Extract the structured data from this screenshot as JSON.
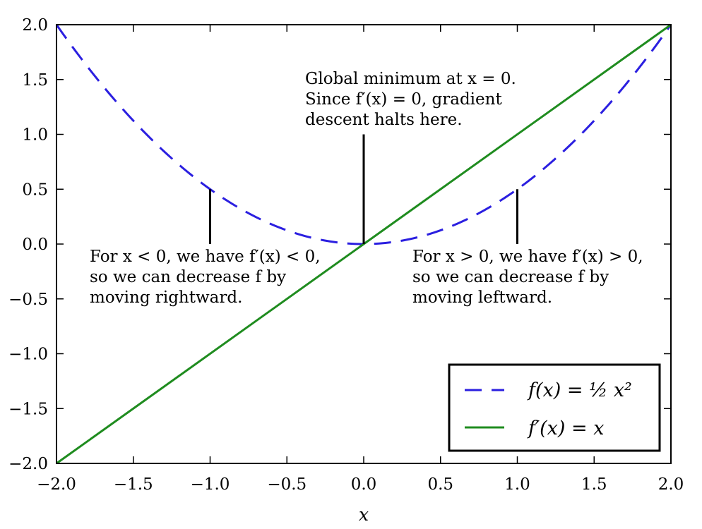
{
  "chart_data": {
    "type": "line",
    "xlabel": "x",
    "ylabel": "",
    "xlim": [
      -2.0,
      2.0
    ],
    "ylim": [
      -2.0,
      2.0
    ],
    "xticks": [
      -2.0,
      -1.5,
      -1.0,
      -0.5,
      0.0,
      0.5,
      1.0,
      1.5,
      2.0
    ],
    "yticks": [
      -2.0,
      -1.5,
      -1.0,
      -0.5,
      0.0,
      0.5,
      1.0,
      1.5,
      2.0
    ],
    "xtick_labels": [
      "−2.0",
      "−1.5",
      "−1.0",
      "−0.5",
      "0.0",
      "0.5",
      "1.0",
      "1.5",
      "2.0"
    ],
    "ytick_labels": [
      "−2.0",
      "−1.5",
      "−1.0",
      "−0.5",
      "0.0",
      "0.5",
      "1.0",
      "1.5",
      "2.0"
    ],
    "grid": false,
    "legend_position": "bottom-right",
    "series": [
      {
        "name": "f(x) = ½ x²",
        "style": "dashed",
        "color": "#2b1fe0",
        "x": [
          -2.0,
          -1.75,
          -1.5,
          -1.25,
          -1.0,
          -0.75,
          -0.5,
          -0.25,
          0.0,
          0.25,
          0.5,
          0.75,
          1.0,
          1.25,
          1.5,
          1.75,
          2.0
        ],
        "y": [
          2.0,
          1.53,
          1.125,
          0.78,
          0.5,
          0.28,
          0.125,
          0.031,
          0.0,
          0.031,
          0.125,
          0.28,
          0.5,
          0.78,
          1.125,
          1.53,
          2.0
        ]
      },
      {
        "name": "f′(x) = x",
        "style": "solid",
        "color": "#1f8c1f",
        "x": [
          -2.0,
          2.0
        ],
        "y": [
          -2.0,
          2.0
        ]
      }
    ],
    "annotations": [
      {
        "lines": [
          "Global minimum at x = 0.",
          "Since f′(x) = 0, gradient",
          "descent halts here."
        ],
        "point": [
          0.0,
          0.0
        ],
        "arrow_from": [
          0.0,
          1.0
        ]
      },
      {
        "lines": [
          "For x < 0, we have f′(x) < 0,",
          "so we can decrease f by",
          "moving rightward."
        ],
        "point": [
          -1.0,
          0.5
        ],
        "arrow_from": [
          -1.0,
          0.0
        ]
      },
      {
        "lines": [
          "For x > 0, we have f′(x) > 0,",
          "so we can decrease f by",
          "moving leftward."
        ],
        "point": [
          1.0,
          0.5
        ],
        "arrow_from": [
          1.0,
          0.0
        ]
      }
    ]
  }
}
